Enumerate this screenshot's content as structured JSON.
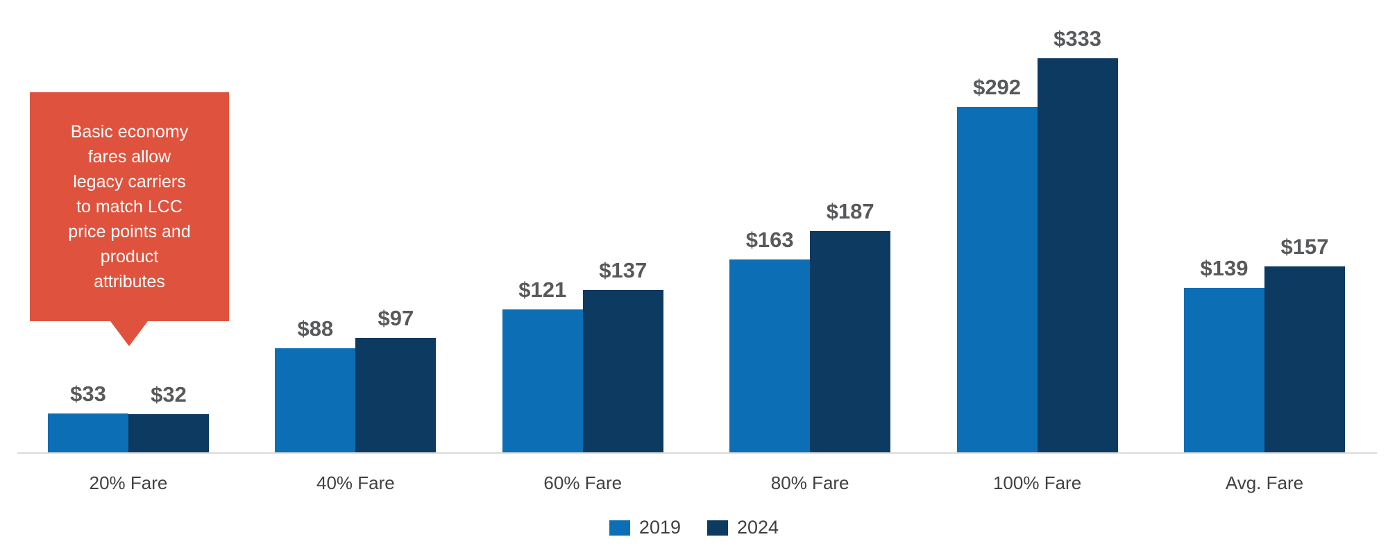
{
  "callout": {
    "lines": [
      "Basic economy",
      "fares allow",
      "legacy carriers",
      "to match LCC",
      "price points and",
      "product",
      "attributes"
    ],
    "background": "#DF523D",
    "text_color": "#FFFFFF"
  },
  "chart_data": {
    "type": "bar",
    "title": "",
    "xlabel": "",
    "ylabel": "",
    "categories": [
      "20% Fare",
      "40% Fare",
      "60% Fare",
      "80% Fare",
      "100% Fare",
      "Avg. Fare"
    ],
    "series": [
      {
        "name": "2019",
        "color": "#0C6EB5",
        "values": [
          33,
          88,
          121,
          163,
          292,
          139
        ]
      },
      {
        "name": "2024",
        "color": "#0D3A60",
        "values": [
          32,
          97,
          137,
          187,
          333,
          157
        ]
      }
    ],
    "value_prefix": "$",
    "data_labels": [
      "$33",
      "$32",
      "$88",
      "$97",
      "$121",
      "$137",
      "$163",
      "$187",
      "$292",
      "$333",
      "$139",
      "$157"
    ],
    "ylim": [
      0,
      383
    ],
    "grid": false,
    "legend_position": "bottom",
    "axis_line_color": "#D9D9D9",
    "value_label_color": "#58595B",
    "category_label_color": "#414042"
  }
}
